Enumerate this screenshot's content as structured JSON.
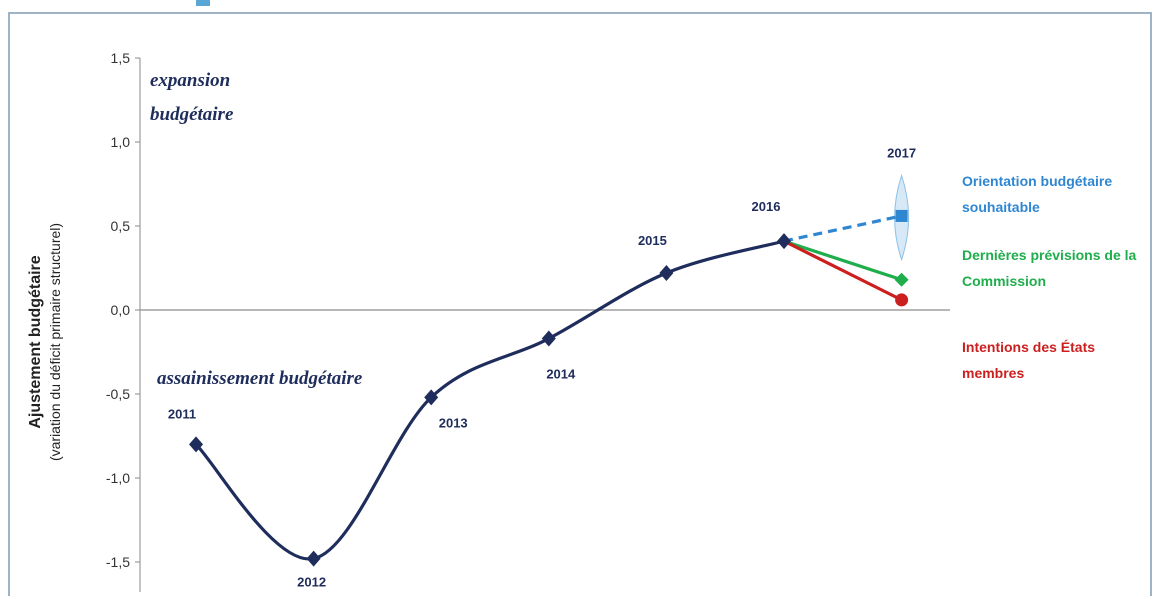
{
  "chart_data": {
    "type": "line",
    "title": "",
    "xlabel": "",
    "ylabel": "Ajustement budgétaire",
    "ylabel_sub": "(variation du déficit primaire structurel)",
    "ylim": [
      -1.5,
      1.5
    ],
    "yticks": [
      "1,5",
      "1,0",
      "0,5",
      "0,0",
      "-0,5",
      "-1,0",
      "-1,5"
    ],
    "ytick_values": [
      1.5,
      1.0,
      0.5,
      0.0,
      -0.5,
      -1.0,
      -1.5
    ],
    "zero_line": true,
    "annotations": {
      "top": [
        "expansion",
        "budgétaire"
      ],
      "bottom": "assainissement budgétaire"
    },
    "series": [
      {
        "points": [
          {
            "year": "2011",
            "x": 2011,
            "y": -0.8
          },
          {
            "year": "2012",
            "x": 2012,
            "y": -1.48
          },
          {
            "year": "2013",
            "x": 2013,
            "y": -0.52
          },
          {
            "year": "2014",
            "x": 2014,
            "y": -0.17
          },
          {
            "year": "2015",
            "x": 2015,
            "y": 0.22
          },
          {
            "year": "2016",
            "x": 2016,
            "y": 0.41
          }
        ],
        "color": "#1f2d5c"
      }
    ],
    "projections": {
      "year_label": "2017",
      "lines": [
        {
          "name": "Orientation budgétaire souhaitable",
          "lines_text": [
            "Orientation budgétaire",
            "souhaitable"
          ],
          "x": 2017,
          "y": 0.56,
          "color": "#2f86d1",
          "dashed": true,
          "marker": "square"
        },
        {
          "name": "Dernières prévisions de la Commission",
          "lines_text": [
            "Dernières prévisions de la",
            "Commission"
          ],
          "x": 2017,
          "y": 0.18,
          "color": "#1fae4b",
          "dashed": false,
          "marker": "diamond"
        },
        {
          "name": "Intentions des États membres",
          "lines_text": [
            "Intentions des États",
            "membres"
          ],
          "x": 2017,
          "y": 0.06,
          "color": "#cc1f1f",
          "dashed": false,
          "marker": "circle"
        }
      ],
      "range": [
        0.3,
        0.8
      ]
    }
  }
}
